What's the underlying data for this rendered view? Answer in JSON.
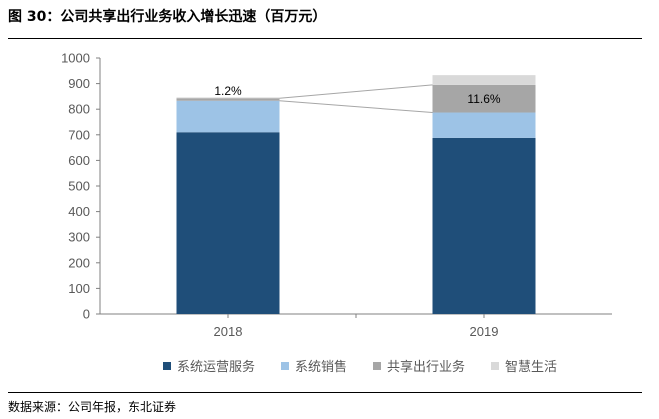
{
  "figure": {
    "title": "图 30：公司共享出行业务收入增长迅速（百万元）",
    "source": "数据来源：公司年报，东北证券"
  },
  "chart_data": {
    "type": "bar",
    "stacked": true,
    "categories": [
      "2018",
      "2019"
    ],
    "ylim": [
      0,
      1000
    ],
    "yticks": [
      0,
      100,
      200,
      300,
      400,
      500,
      600,
      700,
      800,
      900,
      1000
    ],
    "grid": false,
    "legend_position": "bottom",
    "series": [
      {
        "name": "系统运营服务",
        "color": "#1F4E79",
        "values": [
          710,
          688
        ]
      },
      {
        "name": "系统销售",
        "color": "#9DC3E6",
        "values": [
          123,
          99
        ]
      },
      {
        "name": "共享出行业务",
        "color": "#A6A6A6",
        "values": [
          10,
          108
        ]
      },
      {
        "name": "智慧生活",
        "color": "#D9D9D9",
        "values": [
          3,
          38
        ]
      }
    ],
    "annotations": [
      {
        "category": "2018",
        "series": "共享出行业务",
        "text": "1.2%"
      },
      {
        "category": "2019",
        "series": "共享出行业务",
        "text": "11.6%"
      }
    ]
  }
}
